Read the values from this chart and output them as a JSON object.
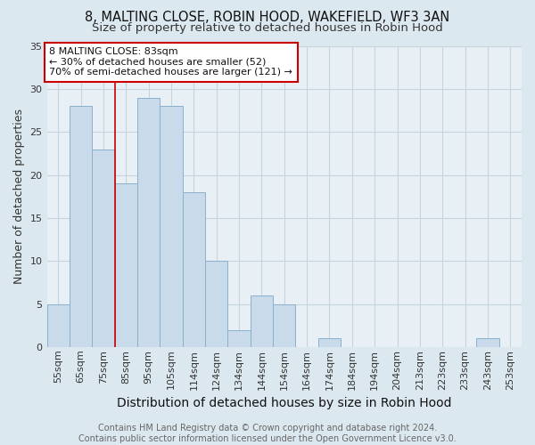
{
  "title": "8, MALTING CLOSE, ROBIN HOOD, WAKEFIELD, WF3 3AN",
  "subtitle": "Size of property relative to detached houses in Robin Hood",
  "xlabel": "Distribution of detached houses by size in Robin Hood",
  "ylabel": "Number of detached properties",
  "categories": [
    "55sqm",
    "65sqm",
    "75sqm",
    "85sqm",
    "95sqm",
    "105sqm",
    "114sqm",
    "124sqm",
    "134sqm",
    "144sqm",
    "154sqm",
    "164sqm",
    "174sqm",
    "184sqm",
    "194sqm",
    "204sqm",
    "213sqm",
    "223sqm",
    "233sqm",
    "243sqm",
    "253sqm"
  ],
  "values": [
    5,
    28,
    23,
    19,
    29,
    28,
    18,
    10,
    2,
    6,
    5,
    0,
    1,
    0,
    0,
    0,
    0,
    0,
    0,
    1,
    0
  ],
  "bar_color": "#c9daea",
  "bar_edge_color": "#8ab0cc",
  "bar_edge_width": 0.7,
  "vline_x": 2.5,
  "vline_color": "#cc0000",
  "ylim": [
    0,
    35
  ],
  "yticks": [
    0,
    5,
    10,
    15,
    20,
    25,
    30,
    35
  ],
  "annotation_text": "8 MALTING CLOSE: 83sqm\n← 30% of detached houses are smaller (52)\n70% of semi-detached houses are larger (121) →",
  "annotation_box_facecolor": "#ffffff",
  "annotation_box_edgecolor": "#cc0000",
  "footer_text": "Contains HM Land Registry data © Crown copyright and database right 2024.\nContains public sector information licensed under the Open Government Licence v3.0.",
  "fig_facecolor": "#dce8f0",
  "plot_facecolor": "#e8eff5",
  "grid_color": "#c5d5e0",
  "title_fontsize": 10.5,
  "subtitle_fontsize": 9.5,
  "xlabel_fontsize": 10,
  "ylabel_fontsize": 9,
  "tick_fontsize": 8,
  "footer_fontsize": 7,
  "annotation_fontsize": 8
}
